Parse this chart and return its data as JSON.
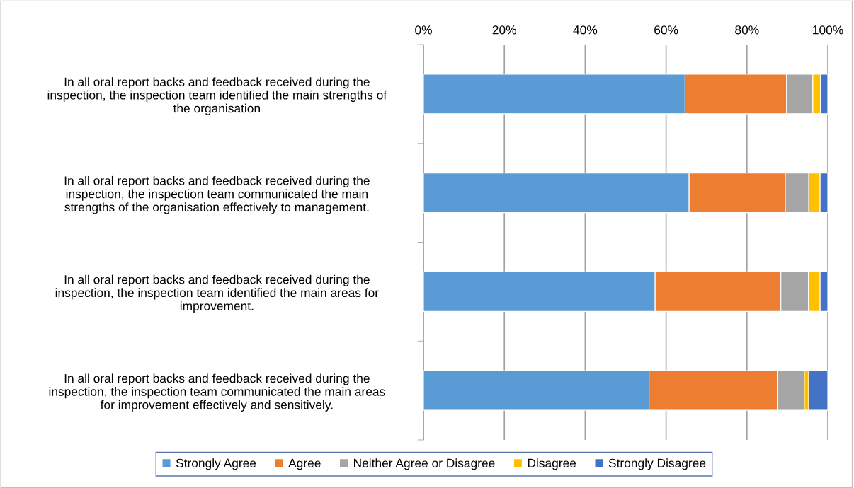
{
  "chart_data": {
    "type": "bar",
    "orientation": "horizontal",
    "stacked": true,
    "categories": [
      "In all oral report backs and feedback received during the\ninspection, the inspection team identified the main strengths of\nthe organisation",
      "In all oral report backs and feedback received during the\ninspection, the inspection team communicated the main\nstrengths of the organisation effectively to management.",
      "In all oral report backs and feedback received during the\ninspection, the inspection team identified the main areas for\nimprovement.",
      "In all oral report backs and feedback received during the\ninspection, the inspection team communicated the main areas\nfor improvement effectively and sensitively."
    ],
    "series": [
      {
        "name": "Strongly Agree",
        "color": "#5b9bd5",
        "values": [
          64.7,
          65.7,
          57.3,
          55.8
        ]
      },
      {
        "name": "Agree",
        "color": "#ed7d31",
        "values": [
          25.1,
          23.8,
          31.1,
          31.7
        ]
      },
      {
        "name": "Neither Agree or Disagree",
        "color": "#a5a5a5",
        "values": [
          6.5,
          5.8,
          6.8,
          6.7
        ]
      },
      {
        "name": "Disagree",
        "color": "#ffc000",
        "values": [
          1.9,
          2.8,
          2.9,
          1.1
        ]
      },
      {
        "name": "Strongly Disagree",
        "color": "#4472c4",
        "values": [
          1.8,
          1.9,
          1.9,
          4.7
        ]
      }
    ],
    "xlim": [
      0,
      100
    ],
    "xticks": [
      {
        "value": 0,
        "label": "0%"
      },
      {
        "value": 20,
        "label": "20%"
      },
      {
        "value": 40,
        "label": "40%"
      },
      {
        "value": 60,
        "label": "60%"
      },
      {
        "value": 80,
        "label": "80%"
      },
      {
        "value": 100,
        "label": "100%"
      }
    ],
    "grid": "x",
    "legend": "bottom"
  }
}
